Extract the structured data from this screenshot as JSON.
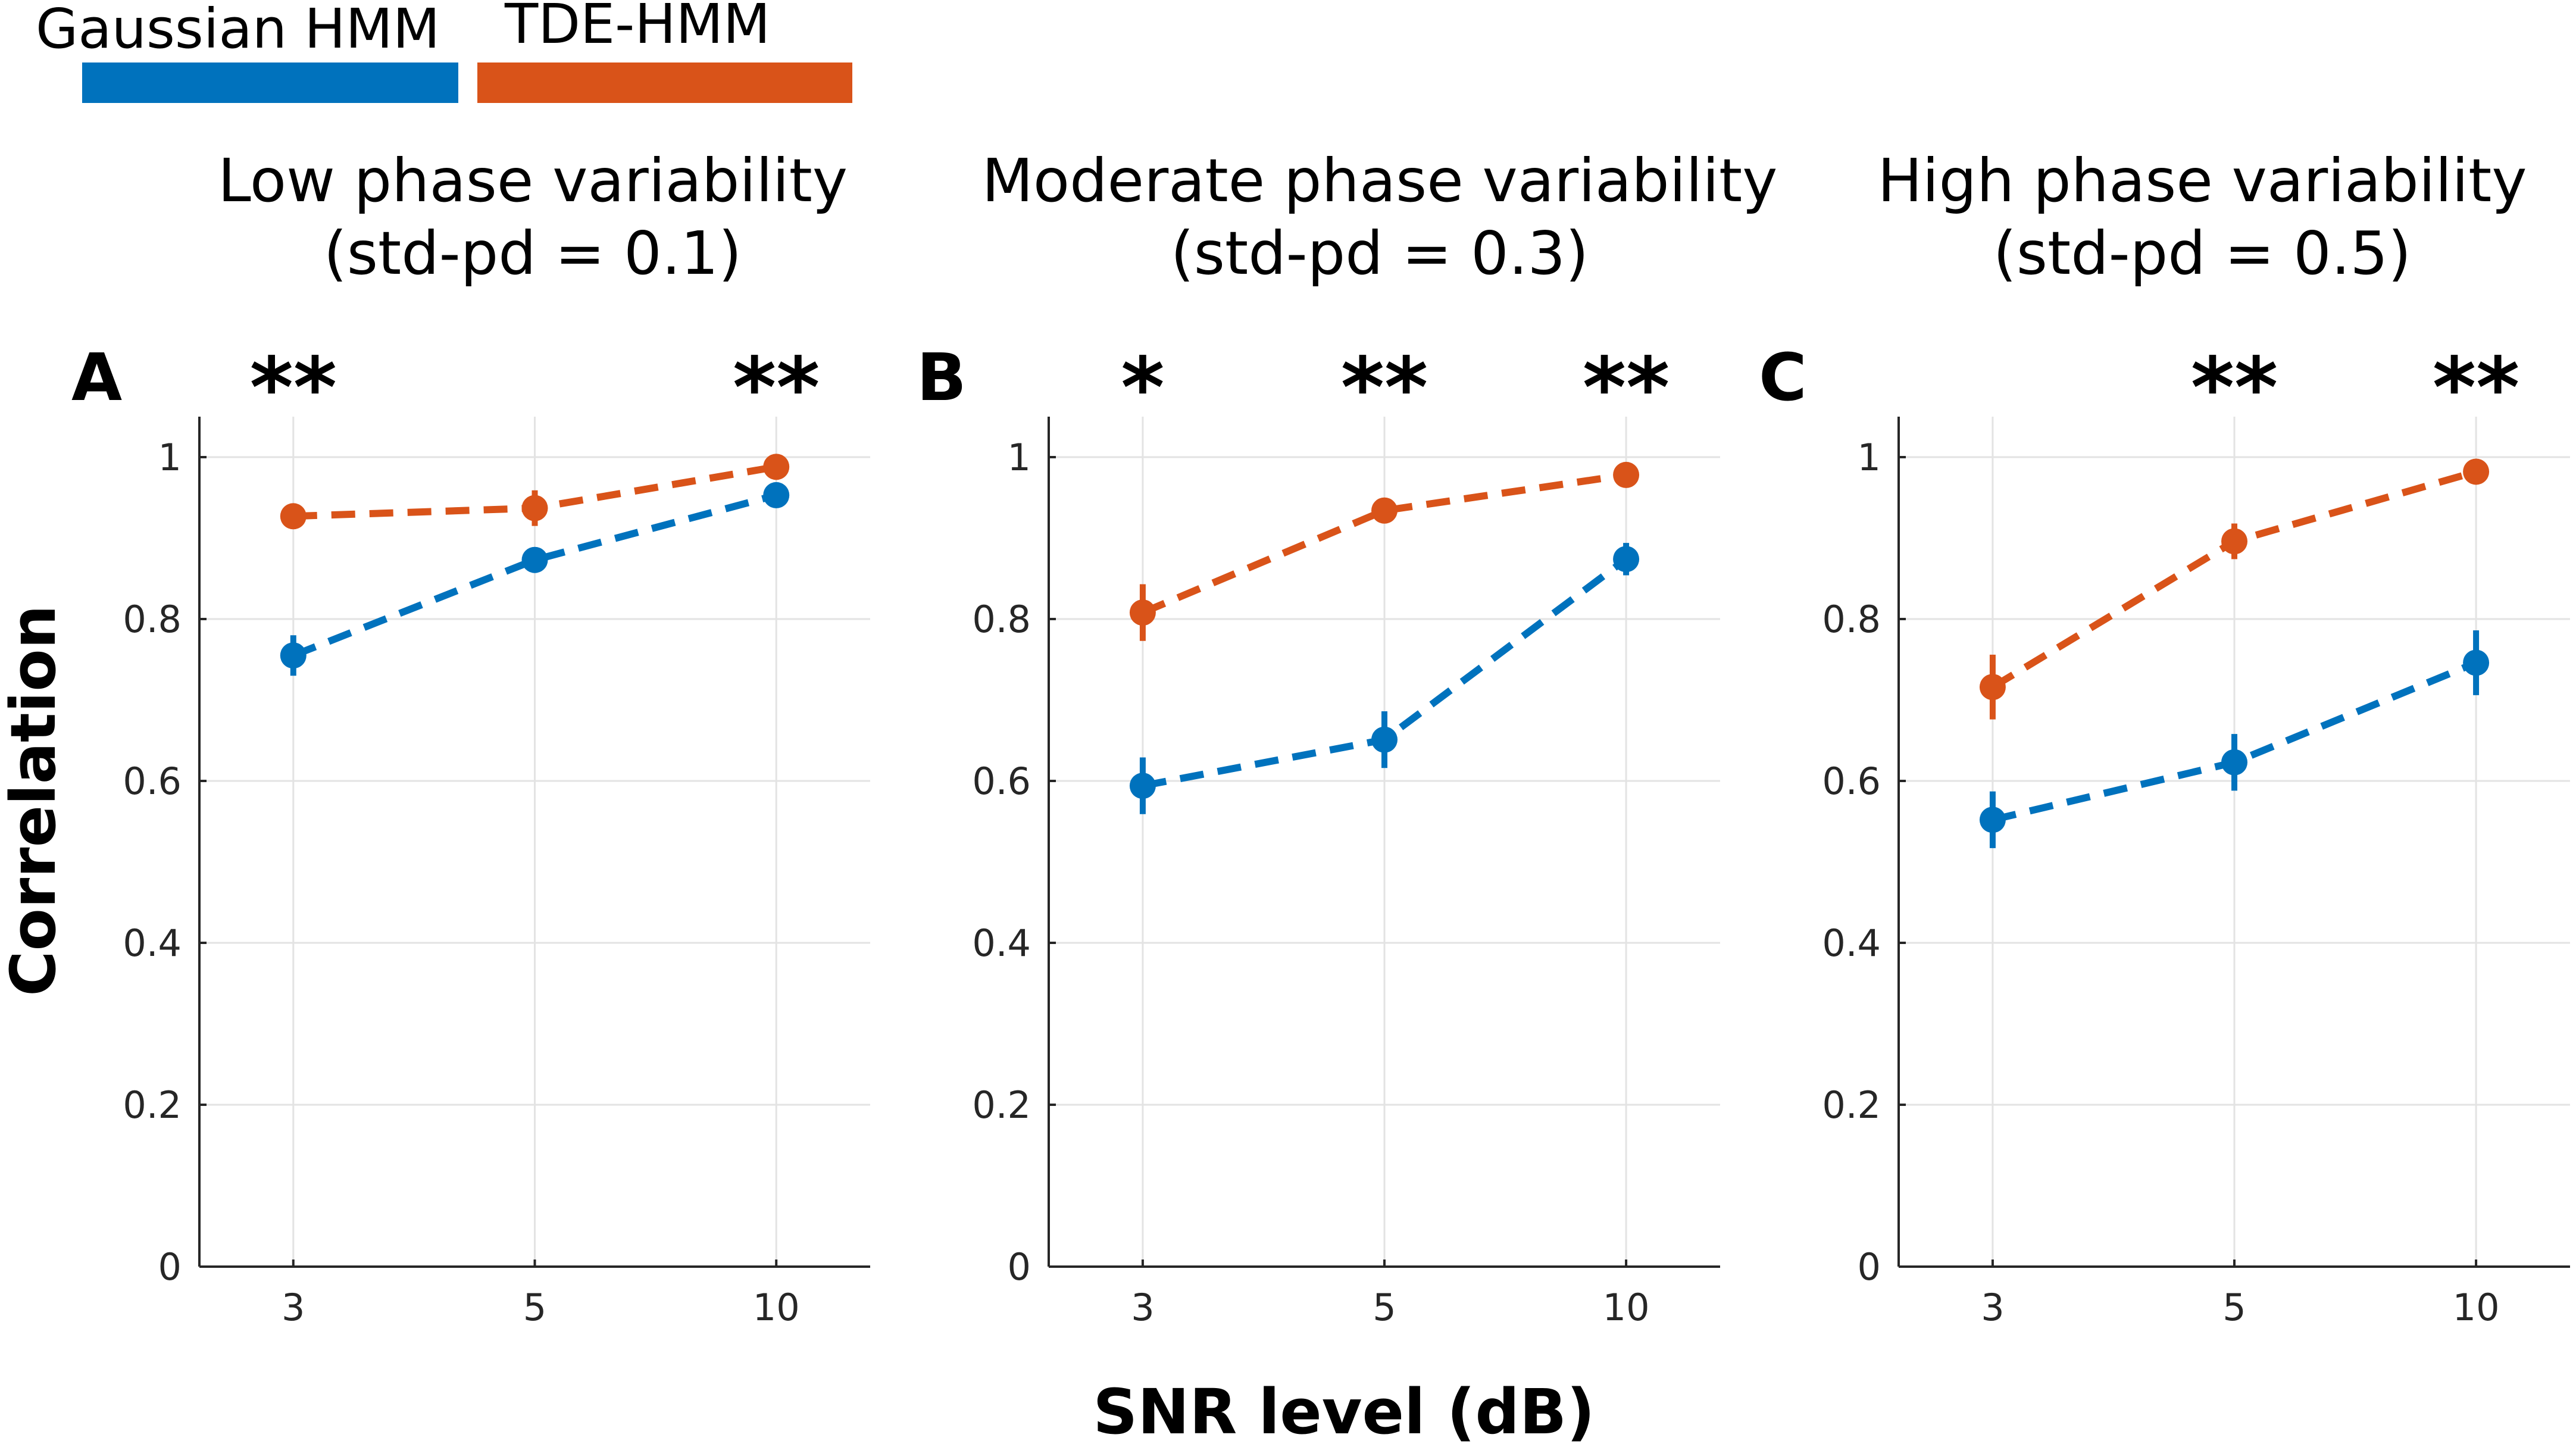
{
  "legend": [
    {
      "label": "Gaussian HMM",
      "color": "#0072BD"
    },
    {
      "label": "TDE-HMM",
      "color": "#D95319"
    }
  ],
  "axis_labels": {
    "y": "Correlation",
    "x": "SNR level (dB)"
  },
  "chart_data": [
    {
      "type": "line",
      "panel": "A",
      "title_line1": "Low phase variability",
      "title_line2": "(std-pd = 0.1)",
      "categories": [
        "3",
        "5",
        "10"
      ],
      "ylim": [
        0,
        1.05
      ],
      "yticks": [
        "0",
        "0.2",
        "0.4",
        "0.6",
        "0.8",
        "1"
      ],
      "significance": [
        "**",
        "",
        "**"
      ],
      "series": [
        {
          "name": "Gaussian HMM",
          "color": "#0072BD",
          "values": [
            0.755,
            0.873,
            0.953
          ],
          "errors": [
            0.025,
            0.012,
            0.01
          ]
        },
        {
          "name": "TDE-HMM",
          "color": "#D95319",
          "values": [
            0.927,
            0.937,
            0.988
          ],
          "errors": [
            0.01,
            0.022,
            0.008
          ]
        }
      ]
    },
    {
      "type": "line",
      "panel": "B",
      "title_line1": "Moderate phase variability",
      "title_line2": "(std-pd = 0.3)",
      "categories": [
        "3",
        "5",
        "10"
      ],
      "ylim": [
        0,
        1.05
      ],
      "yticks": [
        "0",
        "0.2",
        "0.4",
        "0.6",
        "0.8",
        "1"
      ],
      "significance": [
        "*",
        "**",
        "**"
      ],
      "series": [
        {
          "name": "Gaussian HMM",
          "color": "#0072BD",
          "values": [
            0.594,
            0.651,
            0.874
          ],
          "errors": [
            0.035,
            0.035,
            0.02
          ]
        },
        {
          "name": "TDE-HMM",
          "color": "#D95319",
          "values": [
            0.808,
            0.934,
            0.978
          ],
          "errors": [
            0.035,
            0.01,
            0.008
          ]
        }
      ]
    },
    {
      "type": "line",
      "panel": "C",
      "title_line1": "High phase variability",
      "title_line2": "(std-pd = 0.5)",
      "categories": [
        "3",
        "5",
        "10"
      ],
      "ylim": [
        0,
        1.05
      ],
      "yticks": [
        "0",
        "0.2",
        "0.4",
        "0.6",
        "0.8",
        "1"
      ],
      "significance": [
        "",
        "**",
        "**"
      ],
      "series": [
        {
          "name": "Gaussian HMM",
          "color": "#0072BD",
          "values": [
            0.552,
            0.623,
            0.746
          ],
          "errors": [
            0.035,
            0.035,
            0.04
          ]
        },
        {
          "name": "TDE-HMM",
          "color": "#D95319",
          "values": [
            0.716,
            0.896,
            0.982
          ],
          "errors": [
            0.04,
            0.022,
            0.008
          ]
        }
      ]
    }
  ]
}
